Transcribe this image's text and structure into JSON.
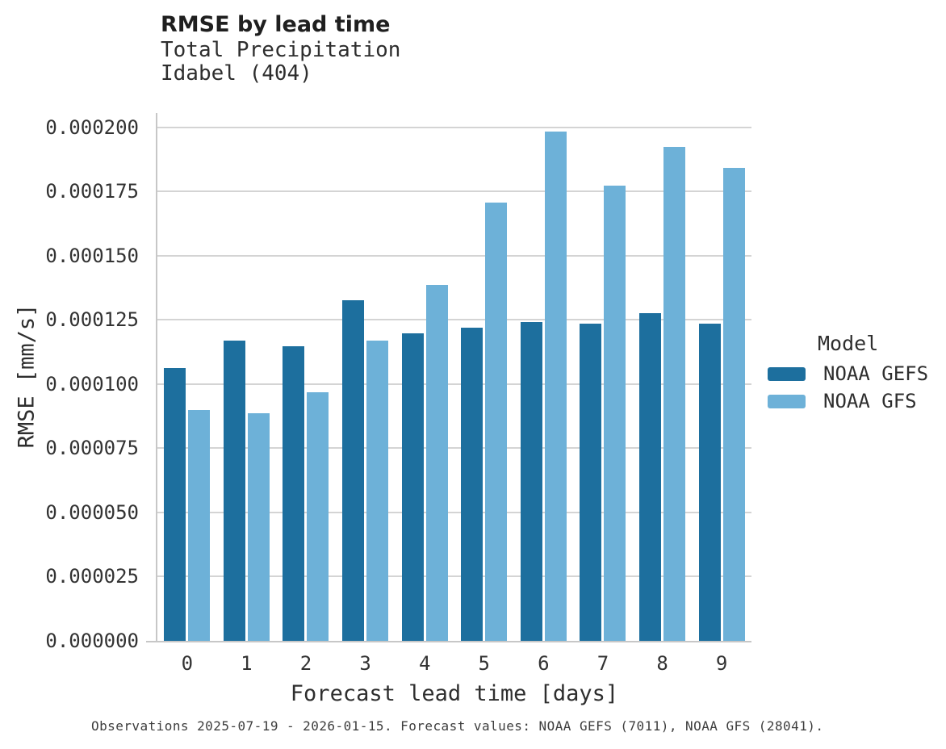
{
  "header": {
    "title": "RMSE by lead time",
    "subtitle": "Total Precipitation",
    "station": "Idabel (404)"
  },
  "axes": {
    "xlabel": "Forecast lead time [days]",
    "ylabel": "RMSE [mm/s]"
  },
  "legend": {
    "title": "Model",
    "items": [
      {
        "label": "NOAA GEFS",
        "color": "#1d6f9e"
      },
      {
        "label": "NOAA GFS",
        "color": "#6db1d8"
      }
    ]
  },
  "caption": "Observations 2025-07-19 - 2026-01-15. Forecast values: NOAA GEFS (7011), NOAA GFS (28041).",
  "colors": {
    "noaa_gefs": "#1d6f9e",
    "noaa_gfs": "#6db1d8",
    "gridline": "#d4d4d4",
    "spine": "#c7c7c7"
  },
  "chart_data": {
    "type": "bar",
    "title": "RMSE by lead time",
    "subtitle": "Total Precipitation",
    "station": "Idabel (404)",
    "categories": [
      "0",
      "1",
      "2",
      "3",
      "4",
      "5",
      "6",
      "7",
      "8",
      "9"
    ],
    "series": [
      {
        "name": "NOAA GEFS",
        "color": "#1d6f9e",
        "values": [
          0.0001063,
          0.0001171,
          0.0001147,
          0.0001327,
          0.0001198,
          0.0001219,
          0.0001243,
          0.0001235,
          0.0001277,
          0.0001235
        ]
      },
      {
        "name": "NOAA GFS",
        "color": "#6db1d8",
        "values": [
          8.98e-05,
          8.88e-05,
          9.68e-05,
          0.0001168,
          0.0001386,
          0.0001708,
          0.0001983,
          0.0001773,
          0.0001923,
          0.0001841
        ]
      }
    ],
    "xlabel": "Forecast lead time [days]",
    "ylabel": "RMSE [mm/s]",
    "ylim": [
      0,
      0.0002056
    ],
    "yticks": [
      {
        "value": 0.0,
        "label": "0.000000"
      },
      {
        "value": 2.5e-05,
        "label": "0.000025"
      },
      {
        "value": 5e-05,
        "label": "0.000050"
      },
      {
        "value": 7.5e-05,
        "label": "0.000075"
      },
      {
        "value": 0.0001,
        "label": "0.000100"
      },
      {
        "value": 0.000125,
        "label": "0.000125"
      },
      {
        "value": 0.00015,
        "label": "0.000150"
      },
      {
        "value": 0.000175,
        "label": "0.000175"
      },
      {
        "value": 0.0002,
        "label": "0.000200"
      }
    ],
    "grid": "horizontal",
    "legend_position": "right"
  }
}
